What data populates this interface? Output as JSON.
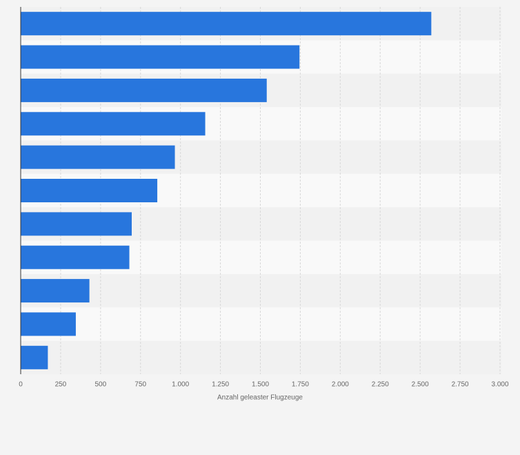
{
  "chart_data": {
    "type": "hbar",
    "x_label": "Anzahl geleaster Flugzeuge",
    "categories": [
      null,
      null,
      null,
      null,
      null,
      null,
      null,
      null,
      null,
      null,
      null
    ],
    "values": [
      2570,
      1745,
      1540,
      1155,
      965,
      855,
      695,
      680,
      430,
      345,
      170
    ],
    "color": "#2876dd",
    "xlim": [
      0,
      3000
    ],
    "xticks": [
      0,
      250,
      500,
      750,
      {
        "value": 1000,
        "label": "1.000"
      },
      {
        "value": 1250,
        "label": "1.250"
      },
      {
        "value": 1500,
        "label": "1.500"
      },
      {
        "value": 1750,
        "label": "1.750"
      },
      {
        "value": 2000,
        "label": "2.000"
      },
      {
        "value": 2250,
        "label": "2.250"
      },
      {
        "value": 2500,
        "label": "2.500"
      },
      {
        "value": 2750,
        "label": "2.750"
      },
      {
        "value": 3000,
        "label": "3.000"
      }
    ],
    "grid": true
  }
}
